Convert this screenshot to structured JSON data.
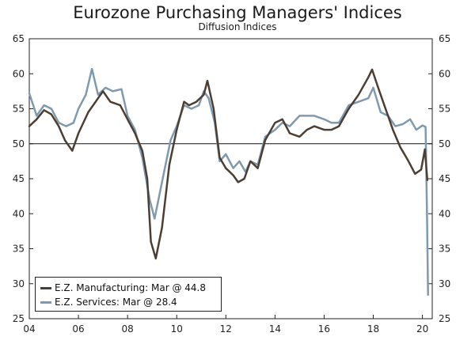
{
  "chart_data": {
    "type": "line",
    "title": "Eurozone Purchasing Managers' Indices",
    "subtitle": "Diffusion Indices",
    "xlabel": "",
    "ylabel": "",
    "xlim": [
      2004,
      2020.4
    ],
    "ylim": [
      25,
      65
    ],
    "x_ticks": [
      2004,
      2006,
      2008,
      2010,
      2012,
      2014,
      2016,
      2018,
      2020
    ],
    "x_tick_labels": [
      "04",
      "06",
      "08",
      "10",
      "12",
      "14",
      "16",
      "18",
      "20"
    ],
    "y_ticks": [
      25,
      30,
      35,
      40,
      45,
      50,
      55,
      60,
      65
    ],
    "y_tick_labels": [
      "25",
      "30",
      "35",
      "40",
      "45",
      "50",
      "55",
      "60",
      "65"
    ],
    "reference_line": 50,
    "legend_position": "bottom-left",
    "series": [
      {
        "name": "E.Z. Manufacturing: Mar @ 44.8",
        "color": "#4d3e33",
        "points": [
          [
            2004.0,
            52.5
          ],
          [
            2004.3,
            53.5
          ],
          [
            2004.6,
            54.8
          ],
          [
            2004.9,
            54.2
          ],
          [
            2005.2,
            52.5
          ],
          [
            2005.45,
            50.5
          ],
          [
            2005.75,
            49.0
          ],
          [
            2006.0,
            51.5
          ],
          [
            2006.4,
            54.5
          ],
          [
            2006.8,
            56.5
          ],
          [
            2007.0,
            57.5
          ],
          [
            2007.3,
            56.0
          ],
          [
            2007.7,
            55.5
          ],
          [
            2008.0,
            53.5
          ],
          [
            2008.3,
            51.5
          ],
          [
            2008.6,
            49.0
          ],
          [
            2008.8,
            45.0
          ],
          [
            2008.95,
            36.0
          ],
          [
            2009.15,
            33.6
          ],
          [
            2009.4,
            38.0
          ],
          [
            2009.7,
            47.0
          ],
          [
            2010.0,
            52.0
          ],
          [
            2010.3,
            56.0
          ],
          [
            2010.5,
            55.5
          ],
          [
            2010.8,
            56.0
          ],
          [
            2011.1,
            57.0
          ],
          [
            2011.25,
            59.0
          ],
          [
            2011.5,
            55.0
          ],
          [
            2011.75,
            48.0
          ],
          [
            2012.0,
            46.5
          ],
          [
            2012.3,
            45.5
          ],
          [
            2012.5,
            44.5
          ],
          [
            2012.75,
            45.0
          ],
          [
            2013.0,
            47.5
          ],
          [
            2013.3,
            46.5
          ],
          [
            2013.6,
            50.5
          ],
          [
            2014.0,
            53.0
          ],
          [
            2014.3,
            53.5
          ],
          [
            2014.6,
            51.5
          ],
          [
            2015.0,
            51.0
          ],
          [
            2015.3,
            52.0
          ],
          [
            2015.6,
            52.5
          ],
          [
            2016.0,
            52.0
          ],
          [
            2016.3,
            52.0
          ],
          [
            2016.6,
            52.5
          ],
          [
            2017.0,
            55.0
          ],
          [
            2017.4,
            57.0
          ],
          [
            2017.8,
            59.5
          ],
          [
            2017.95,
            60.6
          ],
          [
            2018.2,
            58.0
          ],
          [
            2018.5,
            55.0
          ],
          [
            2018.8,
            52.0
          ],
          [
            2019.1,
            49.5
          ],
          [
            2019.4,
            47.7
          ],
          [
            2019.7,
            45.7
          ],
          [
            2019.95,
            46.3
          ],
          [
            2020.1,
            49.2
          ],
          [
            2020.2,
            44.8
          ]
        ]
      },
      {
        "name": "E.Z. Services: Mar @ 28.4",
        "color": "#7f9aae",
        "points": [
          [
            2004.0,
            57.2
          ],
          [
            2004.3,
            54.0
          ],
          [
            2004.6,
            55.5
          ],
          [
            2004.9,
            55.0
          ],
          [
            2005.2,
            53.0
          ],
          [
            2005.5,
            52.5
          ],
          [
            2005.8,
            53.0
          ],
          [
            2006.0,
            55.0
          ],
          [
            2006.3,
            57.0
          ],
          [
            2006.55,
            60.7
          ],
          [
            2006.8,
            57.0
          ],
          [
            2007.1,
            58.0
          ],
          [
            2007.4,
            57.5
          ],
          [
            2007.75,
            57.8
          ],
          [
            2008.0,
            54.0
          ],
          [
            2008.3,
            52.0
          ],
          [
            2008.6,
            48.0
          ],
          [
            2008.9,
            42.0
          ],
          [
            2009.1,
            39.3
          ],
          [
            2009.4,
            44.5
          ],
          [
            2009.75,
            50.5
          ],
          [
            2010.0,
            52.5
          ],
          [
            2010.3,
            55.5
          ],
          [
            2010.6,
            55.0
          ],
          [
            2010.9,
            55.5
          ],
          [
            2011.1,
            57.5
          ],
          [
            2011.3,
            56.5
          ],
          [
            2011.55,
            53.0
          ],
          [
            2011.75,
            47.5
          ],
          [
            2012.0,
            48.5
          ],
          [
            2012.3,
            46.5
          ],
          [
            2012.55,
            47.5
          ],
          [
            2012.8,
            46.0
          ],
          [
            2013.0,
            47.5
          ],
          [
            2013.3,
            47.0
          ],
          [
            2013.6,
            51.0
          ],
          [
            2014.0,
            52.0
          ],
          [
            2014.3,
            53.0
          ],
          [
            2014.6,
            52.5
          ],
          [
            2015.0,
            54.0
          ],
          [
            2015.3,
            54.0
          ],
          [
            2015.6,
            54.0
          ],
          [
            2016.0,
            53.5
          ],
          [
            2016.3,
            53.0
          ],
          [
            2016.6,
            53.0
          ],
          [
            2017.0,
            55.5
          ],
          [
            2017.4,
            56.0
          ],
          [
            2017.8,
            56.5
          ],
          [
            2018.0,
            58.0
          ],
          [
            2018.3,
            54.5
          ],
          [
            2018.6,
            54.0
          ],
          [
            2018.9,
            52.5
          ],
          [
            2019.2,
            52.8
          ],
          [
            2019.5,
            53.5
          ],
          [
            2019.75,
            52.0
          ],
          [
            2020.0,
            52.6
          ],
          [
            2020.13,
            52.4
          ],
          [
            2020.19,
            39.0
          ],
          [
            2020.23,
            28.4
          ]
        ]
      }
    ]
  }
}
